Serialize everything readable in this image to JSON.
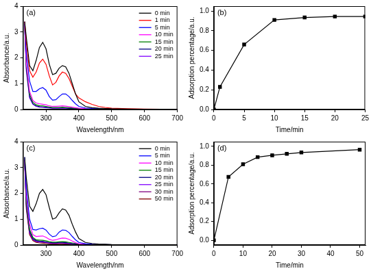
{
  "chart_data": [
    {
      "type": "line",
      "title": "(a)",
      "x_label": "Wavelength/nm",
      "y_label": "Absorbance/a.u.",
      "x": [
        235,
        240,
        250,
        260,
        270,
        280,
        290,
        300,
        310,
        320,
        330,
        340,
        350,
        360,
        370,
        380,
        390,
        400,
        420,
        440,
        460,
        480,
        500,
        550,
        600,
        650,
        700
      ],
      "series": [
        {
          "name": "0 min",
          "color": "#000000",
          "values": [
            3.4,
            2.8,
            1.7,
            1.5,
            1.9,
            2.4,
            2.6,
            2.35,
            1.75,
            1.35,
            1.4,
            1.6,
            1.7,
            1.65,
            1.4,
            1.0,
            0.6,
            0.3,
            0.12,
            0.07,
            0.05,
            0.04,
            0.03,
            0.02,
            0.01,
            0.01,
            0.01
          ]
        },
        {
          "name": "1 min",
          "color": "#ff0000",
          "values": [
            3.4,
            2.6,
            1.5,
            1.25,
            1.45,
            1.8,
            1.95,
            1.75,
            1.3,
            0.95,
            1.05,
            1.3,
            1.45,
            1.4,
            1.2,
            0.9,
            0.6,
            0.45,
            0.3,
            0.2,
            0.12,
            0.08,
            0.05,
            0.03,
            0.02,
            0.01,
            0.01
          ]
        },
        {
          "name": "5 min",
          "color": "#0000ff",
          "values": [
            3.4,
            2.2,
            1.1,
            0.7,
            0.7,
            0.8,
            0.85,
            0.75,
            0.5,
            0.36,
            0.38,
            0.5,
            0.6,
            0.6,
            0.5,
            0.35,
            0.22,
            0.12,
            0.06,
            0.04,
            0.03,
            0.02,
            0.02,
            0.01,
            0.01,
            0.01,
            0.01
          ]
        },
        {
          "name": "10 min",
          "color": "#ff00ff",
          "values": [
            3.3,
            1.8,
            0.7,
            0.35,
            0.25,
            0.22,
            0.2,
            0.18,
            0.14,
            0.12,
            0.12,
            0.13,
            0.14,
            0.13,
            0.11,
            0.09,
            0.07,
            0.05,
            0.03,
            0.02,
            0.02,
            0.01,
            0.01,
            0.01,
            0.01,
            0.0,
            0.0
          ]
        },
        {
          "name": "15 min",
          "color": "#008000",
          "values": [
            3.3,
            1.7,
            0.6,
            0.28,
            0.18,
            0.15,
            0.14,
            0.12,
            0.1,
            0.08,
            0.08,
            0.08,
            0.09,
            0.08,
            0.07,
            0.06,
            0.05,
            0.04,
            0.02,
            0.02,
            0.01,
            0.01,
            0.01,
            0.01,
            0.0,
            0.0,
            0.0
          ]
        },
        {
          "name": "20 min",
          "color": "#000080",
          "values": [
            3.3,
            1.6,
            0.5,
            0.22,
            0.14,
            0.11,
            0.1,
            0.09,
            0.07,
            0.06,
            0.06,
            0.06,
            0.06,
            0.06,
            0.05,
            0.04,
            0.03,
            0.03,
            0.02,
            0.01,
            0.01,
            0.01,
            0.01,
            0.0,
            0.0,
            0.0,
            0.0
          ]
        },
        {
          "name": "25 min",
          "color": "#8000ff",
          "values": [
            3.3,
            1.5,
            0.45,
            0.2,
            0.12,
            0.09,
            0.08,
            0.07,
            0.06,
            0.05,
            0.05,
            0.05,
            0.05,
            0.05,
            0.04,
            0.03,
            0.03,
            0.02,
            0.01,
            0.01,
            0.01,
            0.0,
            0.0,
            0.0,
            0.0,
            0.0,
            0.0
          ]
        }
      ],
      "xlim": [
        230,
        700
      ],
      "xticks": [
        300,
        400,
        500,
        600,
        700
      ],
      "ylim": [
        0,
        4
      ],
      "yticks": [
        0,
        1,
        2,
        3,
        4
      ],
      "grid": false,
      "legend": "upper right",
      "marker": "none"
    },
    {
      "type": "line",
      "title": "(b)",
      "x_label": "Time/min",
      "y_label": "Adsorption percentage/a.u.",
      "x": [
        0,
        1,
        5,
        10,
        15,
        20,
        25
      ],
      "values": [
        0,
        0.23,
        0.66,
        0.91,
        0.935,
        0.945,
        0.945
      ],
      "color": "#000000",
      "marker": "square",
      "xlim": [
        0,
        25
      ],
      "xticks": [
        0,
        5,
        10,
        15,
        20,
        25
      ],
      "ylim": [
        0,
        1.05
      ],
      "yticks": [
        {
          "value": 0,
          "label": "0.0"
        },
        {
          "value": 0.2,
          "label": "0.2"
        },
        {
          "value": 0.4,
          "label": "0.4"
        },
        {
          "value": 0.6,
          "label": "0.6"
        },
        {
          "value": 0.8,
          "label": "0.8"
        },
        {
          "value": 1,
          "label": "1.0"
        }
      ],
      "grid": false
    },
    {
      "type": "line",
      "title": "(c)",
      "x_label": "Wavelength/nm",
      "y_label": "Absorbance/a.u.",
      "x": [
        235,
        240,
        250,
        260,
        270,
        280,
        290,
        300,
        310,
        320,
        330,
        340,
        350,
        360,
        370,
        380,
        390,
        400,
        420,
        440,
        460,
        480,
        500,
        550,
        600,
        650,
        700
      ],
      "series": [
        {
          "name": "0 min",
          "color": "#000000",
          "values": [
            3.4,
            2.6,
            1.5,
            1.3,
            1.6,
            2.0,
            2.15,
            1.95,
            1.45,
            1.0,
            1.05,
            1.25,
            1.4,
            1.35,
            1.15,
            0.8,
            0.5,
            0.25,
            0.1,
            0.06,
            0.04,
            0.03,
            0.02,
            0.01,
            0.01,
            0.01,
            0.01
          ]
        },
        {
          "name": "5 min",
          "color": "#0000ff",
          "values": [
            3.4,
            2.2,
            1.0,
            0.6,
            0.58,
            0.63,
            0.65,
            0.58,
            0.42,
            0.32,
            0.35,
            0.5,
            0.58,
            0.57,
            0.48,
            0.33,
            0.2,
            0.1,
            0.05,
            0.03,
            0.02,
            0.02,
            0.01,
            0.01,
            0.01,
            0.0,
            0.0
          ]
        },
        {
          "name": "10 min",
          "color": "#ff00ff",
          "values": [
            3.3,
            1.9,
            0.8,
            0.4,
            0.33,
            0.34,
            0.35,
            0.3,
            0.22,
            0.18,
            0.2,
            0.24,
            0.27,
            0.26,
            0.22,
            0.15,
            0.09,
            0.05,
            0.03,
            0.02,
            0.01,
            0.01,
            0.01,
            0.0,
            0.0,
            0.0,
            0.0
          ]
        },
        {
          "name": "15 min",
          "color": "#008000",
          "values": [
            3.3,
            1.7,
            0.6,
            0.3,
            0.2,
            0.19,
            0.18,
            0.16,
            0.13,
            0.11,
            0.11,
            0.12,
            0.13,
            0.12,
            0.1,
            0.08,
            0.06,
            0.04,
            0.02,
            0.01,
            0.01,
            0.01,
            0.0,
            0.0,
            0.0,
            0.0,
            0.0
          ]
        },
        {
          "name": "20 min",
          "color": "#000080",
          "values": [
            3.3,
            1.6,
            0.55,
            0.25,
            0.17,
            0.15,
            0.14,
            0.12,
            0.1,
            0.09,
            0.09,
            0.1,
            0.1,
            0.09,
            0.08,
            0.06,
            0.05,
            0.03,
            0.02,
            0.01,
            0.01,
            0.0,
            0.0,
            0.0,
            0.0,
            0.0,
            0.0
          ]
        },
        {
          "name": "25 min",
          "color": "#8000ff",
          "values": [
            3.3,
            1.55,
            0.5,
            0.22,
            0.15,
            0.13,
            0.12,
            0.1,
            0.08,
            0.07,
            0.07,
            0.08,
            0.08,
            0.07,
            0.06,
            0.05,
            0.04,
            0.03,
            0.01,
            0.01,
            0.0,
            0.0,
            0.0,
            0.0,
            0.0,
            0.0,
            0.0
          ]
        },
        {
          "name": "30 min",
          "color": "#800080",
          "values": [
            3.3,
            1.5,
            0.45,
            0.2,
            0.13,
            0.11,
            0.1,
            0.09,
            0.07,
            0.06,
            0.06,
            0.07,
            0.07,
            0.06,
            0.05,
            0.04,
            0.03,
            0.02,
            0.01,
            0.01,
            0.0,
            0.0,
            0.0,
            0.0,
            0.0,
            0.0,
            0.0
          ]
        },
        {
          "name": "50 min",
          "color": "#800000",
          "values": [
            3.2,
            1.4,
            0.4,
            0.17,
            0.1,
            0.08,
            0.07,
            0.06,
            0.05,
            0.04,
            0.04,
            0.05,
            0.05,
            0.04,
            0.04,
            0.03,
            0.02,
            0.02,
            0.01,
            0.0,
            0.0,
            0.0,
            0.0,
            0.0,
            0.0,
            0.0,
            0.0
          ]
        }
      ],
      "xlim": [
        230,
        700
      ],
      "xticks": [
        300,
        400,
        500,
        600,
        700
      ],
      "ylim": [
        0,
        4
      ],
      "yticks": [
        0,
        1,
        2,
        3,
        4
      ],
      "grid": false,
      "legend": "upper right",
      "marker": "none"
    },
    {
      "type": "line",
      "title": "(d)",
      "x_label": "Time/min",
      "y_label": "Adsorption percentage/a.u.",
      "x": [
        0,
        5,
        10,
        15,
        20,
        25,
        30,
        50
      ],
      "values": [
        0,
        0.675,
        0.81,
        0.885,
        0.905,
        0.92,
        0.935,
        0.965
      ],
      "color": "#000000",
      "marker": "square",
      "xlim": [
        0,
        52
      ],
      "xticks": [
        0,
        10,
        20,
        30,
        40,
        50
      ],
      "ylim": [
        -0.05,
        1.05
      ],
      "yticks": [
        {
          "value": 0,
          "label": "0.0"
        },
        {
          "value": 0.2,
          "label": "0.2"
        },
        {
          "value": 0.4,
          "label": "0.4"
        },
        {
          "value": 0.6,
          "label": "0.6"
        },
        {
          "value": 0.8,
          "label": "0.8"
        },
        {
          "value": 1,
          "label": "1.0"
        }
      ],
      "grid": false
    }
  ]
}
